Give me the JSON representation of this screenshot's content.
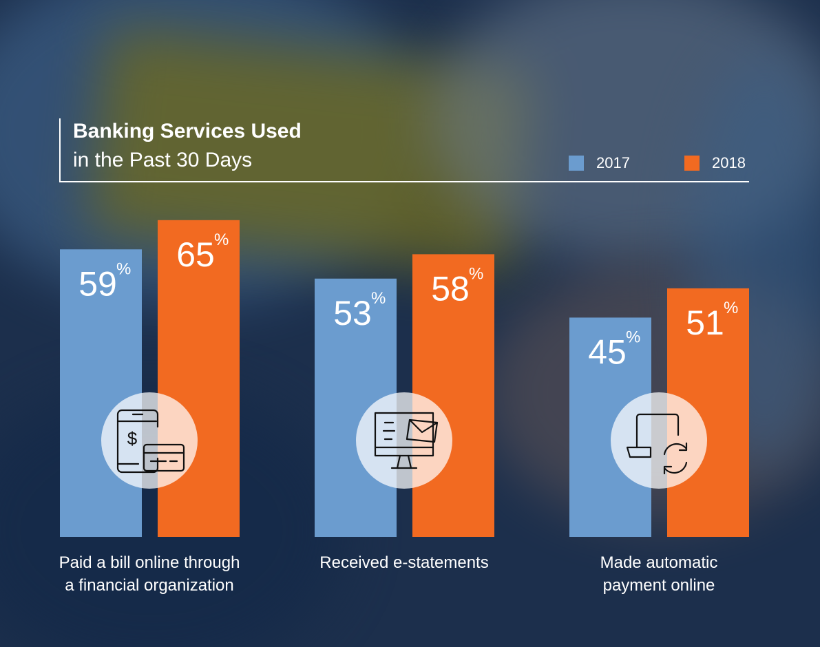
{
  "chart_data": {
    "type": "bar",
    "title": "Banking Services Used",
    "subtitle": "in the Past 30 Days",
    "categories": [
      "Paid a bill online through a financial organization",
      "Received e-statements",
      "Made automatic payment online"
    ],
    "category_lines": [
      [
        "Paid a bill online through",
        "a financial organization"
      ],
      [
        "Received e-statements"
      ],
      [
        "Made automatic",
        "payment online"
      ]
    ],
    "series": [
      {
        "name": "2017",
        "values": [
          59,
          53,
          45
        ],
        "color": "#6b9ccf"
      },
      {
        "name": "2018",
        "values": [
          65,
          58,
          51
        ],
        "color": "#f26a21"
      }
    ],
    "value_suffix": "%",
    "legend_position": "top-right",
    "icons": [
      "mobile-payment-icon",
      "e-statement-monitor-icon",
      "autopay-laptop-icon"
    ]
  }
}
